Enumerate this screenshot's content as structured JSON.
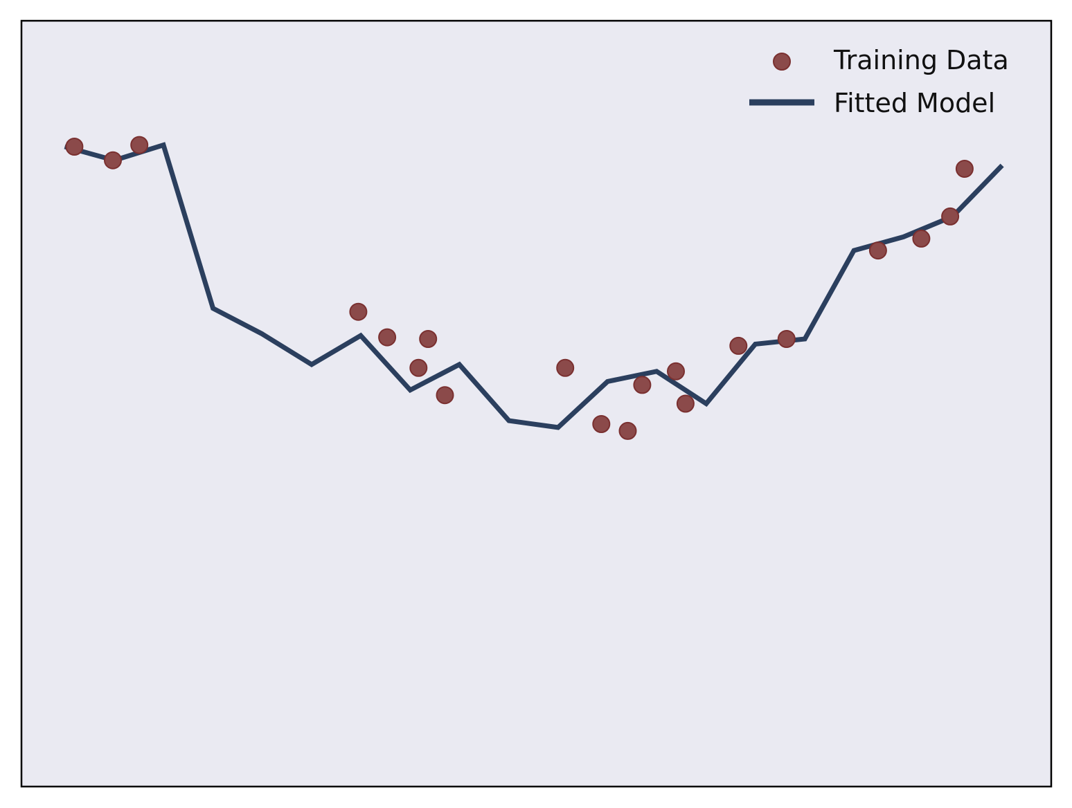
{
  "chart_data": {
    "type": "scatter",
    "title": "",
    "xlabel": "",
    "ylabel": "",
    "xlim": [
      -0.2,
      21.2
    ],
    "ylim": [
      -2.5,
      2.0
    ],
    "grid": false,
    "ticks_visible": false,
    "legend_placement": "top-right",
    "series": [
      {
        "name": "Training Data",
        "kind": "scatter",
        "color": "#8b4a4a",
        "edge_color": "#7a3030",
        "points": [
          {
            "x": 0.9,
            "y": 1.26
          },
          {
            "x": 1.7,
            "y": 1.18
          },
          {
            "x": 2.25,
            "y": 1.27
          },
          {
            "x": 6.8,
            "y": 0.29
          },
          {
            "x": 7.4,
            "y": 0.14
          },
          {
            "x": 8.05,
            "y": -0.04
          },
          {
            "x": 8.25,
            "y": 0.13
          },
          {
            "x": 8.6,
            "y": -0.2
          },
          {
            "x": 11.1,
            "y": -0.04
          },
          {
            "x": 11.85,
            "y": -0.37
          },
          {
            "x": 12.4,
            "y": -0.41
          },
          {
            "x": 12.7,
            "y": -0.14
          },
          {
            "x": 13.4,
            "y": -0.06
          },
          {
            "x": 13.6,
            "y": -0.25
          },
          {
            "x": 14.7,
            "y": 0.09
          },
          {
            "x": 15.7,
            "y": 0.13
          },
          {
            "x": 17.6,
            "y": 0.65
          },
          {
            "x": 18.5,
            "y": 0.72
          },
          {
            "x": 19.1,
            "y": 0.85
          },
          {
            "x": 19.4,
            "y": 1.13
          }
        ]
      },
      {
        "name": "Fitted Model",
        "kind": "line",
        "color": "#2b3f5e",
        "points": [
          {
            "x": 0.7,
            "y": 1.26
          },
          {
            "x": 1.73,
            "y": 1.18
          },
          {
            "x": 2.75,
            "y": 1.27
          },
          {
            "x": 3.78,
            "y": 0.31
          },
          {
            "x": 4.8,
            "y": 0.16
          },
          {
            "x": 5.83,
            "y": -0.02
          },
          {
            "x": 6.85,
            "y": 0.15
          },
          {
            "x": 7.88,
            "y": -0.17
          },
          {
            "x": 8.9,
            "y": -0.02
          },
          {
            "x": 9.93,
            "y": -0.35
          },
          {
            "x": 10.95,
            "y": -0.39
          },
          {
            "x": 11.98,
            "y": -0.12
          },
          {
            "x": 13.0,
            "y": -0.06
          },
          {
            "x": 14.03,
            "y": -0.25
          },
          {
            "x": 15.05,
            "y": 0.1
          },
          {
            "x": 16.08,
            "y": 0.13
          },
          {
            "x": 17.1,
            "y": 0.65
          },
          {
            "x": 18.13,
            "y": 0.73
          },
          {
            "x": 19.15,
            "y": 0.85
          },
          {
            "x": 20.18,
            "y": 1.15
          }
        ]
      }
    ],
    "colors": {
      "plot_background": "#eaeaf2",
      "axes_edge": "#000000",
      "figure_background": "#ffffff"
    }
  }
}
